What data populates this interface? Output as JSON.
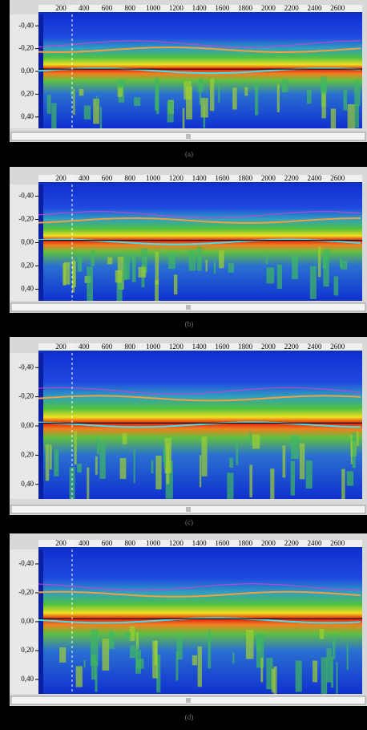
{
  "panels": [
    {
      "caption": "(a)",
      "x_ticks": [
        "200",
        "400",
        "600",
        "800",
        "1000",
        "1200",
        "1400",
        "1600",
        "1800",
        "2000",
        "2200",
        "2400",
        "2600"
      ],
      "y_ticks": [
        "-0,40",
        "-0,20",
        "0,00",
        "0,20",
        "0,40"
      ]
    },
    {
      "caption": "(b)",
      "x_ticks": [
        "200",
        "400",
        "600",
        "800",
        "1000",
        "1200",
        "1400",
        "1600",
        "1800",
        "2000",
        "2200",
        "2400",
        "2600"
      ],
      "y_ticks": [
        "-0,40",
        "-0,20",
        "0,00",
        "0,20",
        "0,40"
      ]
    },
    {
      "caption": "(c)",
      "x_ticks": [
        "200",
        "400",
        "600",
        "800",
        "1000",
        "1200",
        "1400",
        "1600",
        "1800",
        "2000",
        "2200",
        "2400",
        "2600"
      ],
      "y_ticks": [
        "-0,40",
        "-0,20",
        "0,00",
        "0,20",
        "0,40"
      ]
    },
    {
      "caption": "(d)",
      "x_ticks": [
        "200",
        "400",
        "600",
        "800",
        "1000",
        "1200",
        "1400",
        "1600",
        "1800",
        "2000",
        "2200",
        "2400",
        "2600"
      ],
      "y_ticks": [
        "-0,40",
        "-0,20",
        "0,00",
        "0,20",
        "0,40"
      ]
    }
  ]
}
